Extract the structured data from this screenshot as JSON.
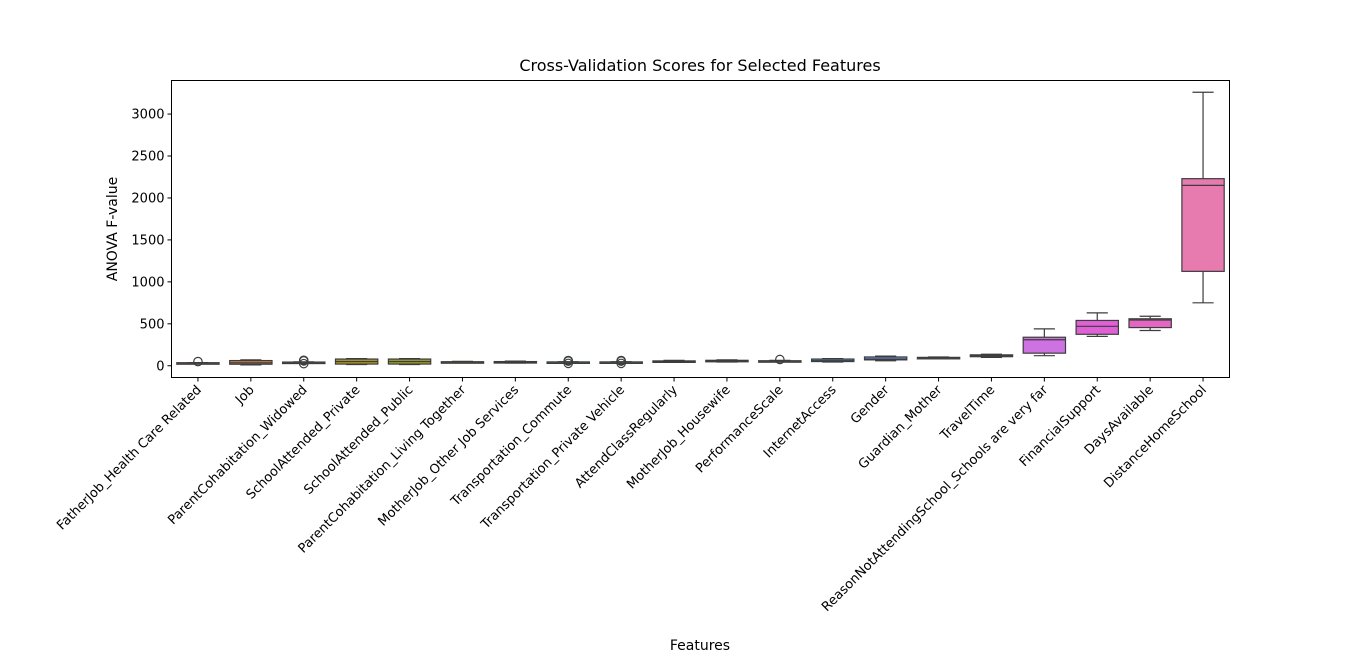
{
  "chart_data": {
    "type": "box",
    "title": "Cross-Validation Scores for Selected Features",
    "xlabel": "Features",
    "ylabel": "ANOVA F-value",
    "ylim": [
      -140,
      3400
    ],
    "yticks": [
      0,
      500,
      1000,
      1500,
      2000,
      2500,
      3000
    ],
    "grid": false,
    "series": [
      {
        "category": "FatherJob_Health Care Related",
        "color": "#e1726e",
        "min": 28,
        "q1": 30,
        "median": 33,
        "q3": 36,
        "max": 38,
        "outliers": [
          50
        ]
      },
      {
        "category": "Job",
        "color": "#c57f4b",
        "min": 10,
        "q1": 18,
        "median": 35,
        "q3": 62,
        "max": 70,
        "outliers": []
      },
      {
        "category": "ParentCohabitation_Widowed",
        "color": "#b28b3a",
        "min": 38,
        "q1": 40,
        "median": 42,
        "q3": 44,
        "max": 46,
        "outliers": [
          25,
          58,
          65
        ]
      },
      {
        "category": "SchoolAttended_Private",
        "color": "#a8932f",
        "min": 15,
        "q1": 20,
        "median": 50,
        "q3": 80,
        "max": 85,
        "outliers": []
      },
      {
        "category": "SchoolAttended_Public",
        "color": "#969a2e",
        "min": 15,
        "q1": 20,
        "median": 50,
        "q3": 80,
        "max": 85,
        "outliers": []
      },
      {
        "category": "ParentCohabitation_Living Together",
        "color": "#7ca232",
        "min": 38,
        "q1": 42,
        "median": 45,
        "q3": 48,
        "max": 52,
        "outliers": []
      },
      {
        "category": "MotherJob_Other Job Services",
        "color": "#54a84a",
        "min": 32,
        "q1": 36,
        "median": 42,
        "q3": 50,
        "max": 55,
        "outliers": []
      },
      {
        "category": "Transportation_Commute",
        "color": "#39a96b",
        "min": 38,
        "q1": 40,
        "median": 43,
        "q3": 46,
        "max": 48,
        "outliers": [
          28,
          55,
          62
        ]
      },
      {
        "category": "Transportation_Private Vehicle",
        "color": "#38a586",
        "min": 38,
        "q1": 40,
        "median": 43,
        "q3": 46,
        "max": 48,
        "outliers": [
          28,
          55,
          62
        ]
      },
      {
        "category": "AttendClassRegularly",
        "color": "#3aa39b",
        "min": 40,
        "q1": 45,
        "median": 52,
        "q3": 58,
        "max": 65,
        "outliers": []
      },
      {
        "category": "MotherJob_Housewife",
        "color": "#3ca1ae",
        "min": 45,
        "q1": 50,
        "median": 58,
        "q3": 65,
        "max": 70,
        "outliers": []
      },
      {
        "category": "PerformanceScale",
        "color": "#3e9fc1",
        "min": 48,
        "q1": 52,
        "median": 56,
        "q3": 60,
        "max": 64,
        "outliers": [
          75
        ]
      },
      {
        "category": "InternetAccess",
        "color": "#4a9bd6",
        "min": 45,
        "q1": 50,
        "median": 60,
        "q3": 80,
        "max": 85,
        "outliers": []
      },
      {
        "category": "Gender",
        "color": "#6e8fe0",
        "min": 60,
        "q1": 70,
        "median": 80,
        "q3": 105,
        "max": 115,
        "outliers": []
      },
      {
        "category": "Guardian_Mother",
        "color": "#9a86e6",
        "min": 85,
        "q1": 90,
        "median": 95,
        "q3": 100,
        "max": 105,
        "outliers": []
      },
      {
        "category": "TravelTime",
        "color": "#b47ee8",
        "min": 100,
        "q1": 108,
        "median": 120,
        "q3": 130,
        "max": 138,
        "outliers": []
      },
      {
        "category": "ReasonNotAttendingSchool_Schools are very far",
        "color": "#cd72e0",
        "min": 120,
        "q1": 150,
        "median": 310,
        "q3": 340,
        "max": 440,
        "outliers": []
      },
      {
        "category": "FinancialSupport",
        "color": "#e061d6",
        "min": 350,
        "q1": 375,
        "median": 470,
        "q3": 540,
        "max": 630,
        "outliers": []
      },
      {
        "category": "DaysAvailable",
        "color": "#e466c3",
        "min": 420,
        "q1": 455,
        "median": 545,
        "q3": 560,
        "max": 590,
        "outliers": []
      },
      {
        "category": "DistanceHomeSchool",
        "color": "#e77bb0",
        "min": 750,
        "q1": 1125,
        "median": 2150,
        "q3": 2230,
        "max": 3260,
        "outliers": []
      }
    ]
  }
}
